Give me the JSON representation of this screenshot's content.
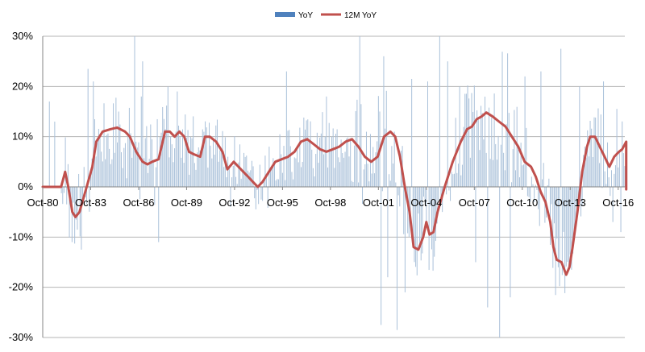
{
  "chart_data": {
    "type": "bar+line",
    "title": "",
    "xlabel": "",
    "ylabel": "",
    "ylim": [
      -30,
      30
    ],
    "y_ticks": [
      30,
      20,
      10,
      0,
      -10,
      -20,
      -30
    ],
    "y_tick_labels": [
      "30%",
      "20%",
      "10%",
      "0%",
      "-10%",
      "-20%",
      "-30%"
    ],
    "x_start": {
      "year": 1980,
      "month": 10
    },
    "x_end": {
      "year": 2017,
      "month": 3
    },
    "x_tick_labels": [
      "Oct-80",
      "Oct-83",
      "Oct-86",
      "Oct-89",
      "Oct-92",
      "Oct-95",
      "Oct-98",
      "Oct-01",
      "Oct-04",
      "Oct-07",
      "Oct-10",
      "Oct-13",
      "Oct-16"
    ],
    "gridlines": true,
    "legend_position": "top-center",
    "colors": {
      "bars": "#4f81bd",
      "bars_fill": "#a9c0d9",
      "line": "#c0504d",
      "grid": "#b4b4b4",
      "axis": "#868686"
    },
    "series": [
      {
        "name": "YoY",
        "kind": "bar",
        "note": "monthly year-over-year change; approximated around the 12M trend with noise",
        "amplitude_profile": [
          [
            1980.75,
            0
          ],
          [
            1981.9,
            0
          ],
          [
            1982.0,
            9
          ],
          [
            1984.0,
            8
          ],
          [
            1986.0,
            9
          ],
          [
            1987.5,
            8
          ],
          [
            1990.0,
            5
          ],
          [
            1995.0,
            5
          ],
          [
            1999.0,
            6
          ],
          [
            2000.3,
            9
          ],
          [
            2001.0,
            11
          ],
          [
            2002.5,
            10
          ],
          [
            2004.5,
            9
          ],
          [
            2006.0,
            7
          ],
          [
            2007.5,
            8
          ],
          [
            2009.0,
            9
          ],
          [
            2010.5,
            10
          ],
          [
            2012.0,
            8
          ],
          [
            2014.0,
            7
          ],
          [
            2016.0,
            8
          ],
          [
            2017.25,
            8
          ]
        ],
        "spikes": [
          [
            1981.2,
            17
          ],
          [
            1981.5,
            13
          ],
          [
            1982.6,
            -11
          ],
          [
            1983.2,
            -12.5
          ],
          [
            1983.6,
            23.5
          ],
          [
            1983.9,
            21
          ],
          [
            1985.5,
            15
          ],
          [
            1986.5,
            30
          ],
          [
            1987.0,
            25
          ],
          [
            1988.0,
            -11
          ],
          [
            1988.6,
            20
          ],
          [
            1989.2,
            19
          ],
          [
            1992.5,
            -4
          ],
          [
            1996.0,
            23
          ],
          [
            1998.5,
            18
          ],
          [
            2000.6,
            30
          ],
          [
            2001.9,
            -27.5
          ],
          [
            2002.3,
            -18
          ],
          [
            2002.9,
            -28.5
          ],
          [
            2003.4,
            -21
          ],
          [
            2003.8,
            21.5
          ],
          [
            2004.8,
            21
          ],
          [
            2005.6,
            30
          ],
          [
            2006.1,
            25
          ],
          [
            2006.8,
            20
          ],
          [
            2007.8,
            -15
          ],
          [
            2008.6,
            -24
          ],
          [
            2009.3,
            -30
          ],
          [
            2010.0,
            -22
          ],
          [
            2010.9,
            22
          ],
          [
            2011.9,
            23
          ],
          [
            2013.2,
            27.5
          ],
          [
            2014.3,
            20
          ],
          [
            2015.8,
            21
          ],
          [
            2016.4,
            -7
          ],
          [
            2016.9,
            -9
          ]
        ]
      },
      {
        "name": "12M YoY",
        "kind": "line",
        "points": [
          [
            1980.75,
            0
          ],
          [
            1981.9,
            0
          ],
          [
            1982.15,
            3
          ],
          [
            1982.35,
            0
          ],
          [
            1982.6,
            -5
          ],
          [
            1982.8,
            -6
          ],
          [
            1983.05,
            -5
          ],
          [
            1983.5,
            0
          ],
          [
            1983.85,
            4
          ],
          [
            1984.1,
            9
          ],
          [
            1984.5,
            11
          ],
          [
            1985.0,
            11.5
          ],
          [
            1985.4,
            11.8
          ],
          [
            1985.9,
            11
          ],
          [
            1986.2,
            10
          ],
          [
            1986.6,
            7
          ],
          [
            1987.0,
            5
          ],
          [
            1987.3,
            4.5
          ],
          [
            1987.6,
            5
          ],
          [
            1988.0,
            5.5
          ],
          [
            1988.4,
            11
          ],
          [
            1988.7,
            11
          ],
          [
            1989.0,
            10
          ],
          [
            1989.3,
            11
          ],
          [
            1989.6,
            10
          ],
          [
            1989.9,
            7
          ],
          [
            1990.2,
            6.5
          ],
          [
            1990.6,
            6
          ],
          [
            1990.9,
            10
          ],
          [
            1991.2,
            10
          ],
          [
            1991.6,
            9
          ],
          [
            1992.0,
            7
          ],
          [
            1992.3,
            3.5
          ],
          [
            1992.7,
            5
          ],
          [
            1993.0,
            4
          ],
          [
            1993.3,
            3
          ],
          [
            1993.6,
            2
          ],
          [
            1993.9,
            1
          ],
          [
            1994.2,
            0
          ],
          [
            1994.5,
            1
          ],
          [
            1994.9,
            3
          ],
          [
            1995.3,
            5
          ],
          [
            1995.7,
            5.5
          ],
          [
            1996.1,
            6
          ],
          [
            1996.5,
            7
          ],
          [
            1996.9,
            9
          ],
          [
            1997.3,
            9.5
          ],
          [
            1997.7,
            8.5
          ],
          [
            1998.1,
            7.5
          ],
          [
            1998.5,
            7
          ],
          [
            1998.9,
            7.5
          ],
          [
            1999.3,
            8
          ],
          [
            1999.7,
            9
          ],
          [
            2000.1,
            9.5
          ],
          [
            2000.5,
            8
          ],
          [
            2000.9,
            6
          ],
          [
            2001.3,
            5
          ],
          [
            2001.7,
            6
          ],
          [
            2002.1,
            10
          ],
          [
            2002.5,
            11
          ],
          [
            2002.8,
            10
          ],
          [
            2003.1,
            6
          ],
          [
            2003.4,
            0
          ],
          [
            2003.7,
            -5
          ],
          [
            2003.95,
            -12
          ],
          [
            2004.25,
            -12.5
          ],
          [
            2004.55,
            -10
          ],
          [
            2004.75,
            -7
          ],
          [
            2004.95,
            -9.5
          ],
          [
            2005.2,
            -9
          ],
          [
            2005.45,
            -5
          ],
          [
            2005.9,
            0
          ],
          [
            2006.4,
            5
          ],
          [
            2006.9,
            9
          ],
          [
            2007.3,
            11.5
          ],
          [
            2007.6,
            12
          ],
          [
            2007.9,
            13.5
          ],
          [
            2008.2,
            14
          ],
          [
            2008.5,
            14.8
          ],
          [
            2008.9,
            14
          ],
          [
            2009.3,
            13
          ],
          [
            2009.7,
            12
          ],
          [
            2010.1,
            10
          ],
          [
            2010.5,
            8
          ],
          [
            2010.9,
            5
          ],
          [
            2011.3,
            4
          ],
          [
            2011.6,
            2
          ],
          [
            2011.9,
            -1
          ],
          [
            2012.2,
            -3
          ],
          [
            2012.5,
            -7
          ],
          [
            2012.7,
            -12
          ],
          [
            2012.9,
            -14.5
          ],
          [
            2013.2,
            -15
          ],
          [
            2013.5,
            -17.5
          ],
          [
            2013.7,
            -16
          ],
          [
            2013.9,
            -12
          ],
          [
            2014.2,
            -5
          ],
          [
            2014.5,
            3
          ],
          [
            2014.8,
            8
          ],
          [
            2015.0,
            10
          ],
          [
            2015.3,
            10
          ],
          [
            2015.6,
            8
          ],
          [
            2015.9,
            6
          ],
          [
            2016.2,
            4
          ],
          [
            2016.5,
            6
          ],
          [
            2016.8,
            7
          ],
          [
            2017.0,
            7.5
          ],
          [
            2017.25,
            9
          ],
          [
            2017.25,
            -0.5
          ]
        ]
      }
    ]
  }
}
